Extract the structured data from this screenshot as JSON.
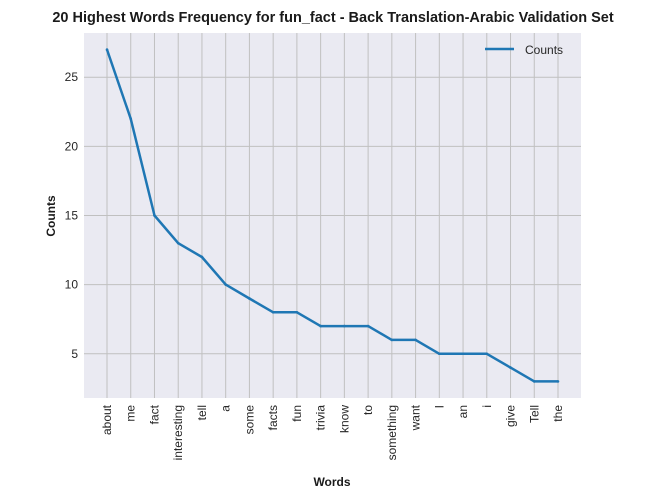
{
  "chart_data": {
    "type": "line",
    "title": "20 Highest Words Frequency for fun_fact - Back Translation-Arabic Validation Set",
    "xlabel": "Words",
    "ylabel": "Counts",
    "categories": [
      "about",
      "me",
      "fact",
      "interesting",
      "tell",
      "a",
      "some",
      "facts",
      "fun",
      "trivia",
      "know",
      "to",
      "something",
      "want",
      "I",
      "an",
      "i",
      "give",
      "Tell",
      "the"
    ],
    "series": [
      {
        "name": "Counts",
        "values": [
          27,
          22,
          15,
          13,
          12,
          10,
          9,
          8,
          8,
          7,
          7,
          7,
          6,
          6,
          5,
          5,
          5,
          4,
          3,
          3
        ]
      }
    ],
    "ylim": [
      1.8,
      28.2
    ],
    "yticks": [
      5,
      10,
      15,
      20,
      25
    ],
    "grid": true,
    "legend_position": "top-right",
    "colors": {
      "line": "#1f77b4",
      "plot_bg": "#eaeaf2",
      "grid": "#c0c0c0"
    }
  }
}
